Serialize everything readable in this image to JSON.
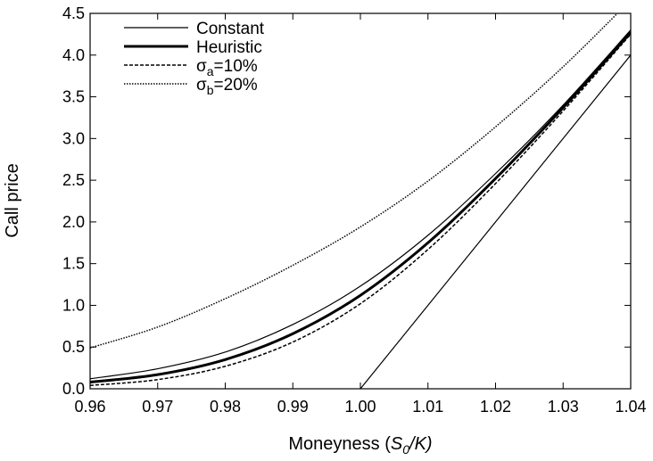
{
  "chart_data": {
    "type": "line",
    "title": "",
    "xlabel": {
      "prefix": "Moneyness (",
      "var": "S",
      "sub": "0",
      "suffix": "/K)"
    },
    "ylabel": "Call price",
    "xlim": [
      0.96,
      1.04
    ],
    "ylim": [
      0.0,
      4.5
    ],
    "x_ticks": [
      0.96,
      0.97,
      0.98,
      0.99,
      1.0,
      1.01,
      1.02,
      1.03,
      1.04
    ],
    "x_tick_labels": [
      "0.96",
      "0.97",
      "0.98",
      "0.99",
      "1.00",
      "1.01",
      "1.02",
      "1.03",
      "1.04"
    ],
    "y_ticks": [
      0.0,
      0.5,
      1.0,
      1.5,
      2.0,
      2.5,
      3.0,
      3.5,
      4.0,
      4.5
    ],
    "y_tick_labels": [
      "0.0",
      "0.5",
      "1.0",
      "1.5",
      "2.0",
      "2.5",
      "3.0",
      "3.5",
      "4.0",
      "4.5"
    ],
    "grid": false,
    "legend_position": "top-left",
    "series": [
      {
        "name": "Constant",
        "style": "thin-solid",
        "x": [
          0.96,
          0.97,
          0.98,
          0.99,
          1.0,
          1.01,
          1.02,
          1.03,
          1.04
        ],
        "y": [
          0.12,
          0.24,
          0.44,
          0.77,
          1.23,
          1.84,
          2.58,
          3.4,
          4.3
        ]
      },
      {
        "name": "Heuristic",
        "style": "thick-solid",
        "x": [
          0.96,
          0.97,
          0.98,
          0.99,
          1.0,
          1.01,
          1.02,
          1.03,
          1.04
        ],
        "y": [
          0.08,
          0.17,
          0.35,
          0.66,
          1.12,
          1.75,
          2.52,
          3.37,
          4.27
        ]
      },
      {
        "name": {
          "sym": "σ",
          "sub": "a",
          "rest": "=10%"
        },
        "style": "dashed",
        "x": [
          0.96,
          0.97,
          0.98,
          0.99,
          1.0,
          1.01,
          1.02,
          1.03,
          1.04
        ],
        "y": [
          0.04,
          0.11,
          0.27,
          0.56,
          1.02,
          1.67,
          2.46,
          3.33,
          4.25
        ]
      },
      {
        "name": {
          "sym": "σ",
          "sub": "b",
          "rest": "=20%"
        },
        "style": "dotted",
        "x": [
          0.96,
          0.97,
          0.98,
          0.99,
          1.0,
          1.01,
          1.02,
          1.03,
          1.04
        ],
        "y": [
          0.49,
          0.74,
          1.08,
          1.48,
          1.94,
          2.49,
          3.14,
          3.86,
          4.66
        ]
      },
      {
        "name": "",
        "style": "thin-solid",
        "x": [
          1.0,
          1.04
        ],
        "y": [
          0.0,
          4.0
        ]
      }
    ]
  }
}
